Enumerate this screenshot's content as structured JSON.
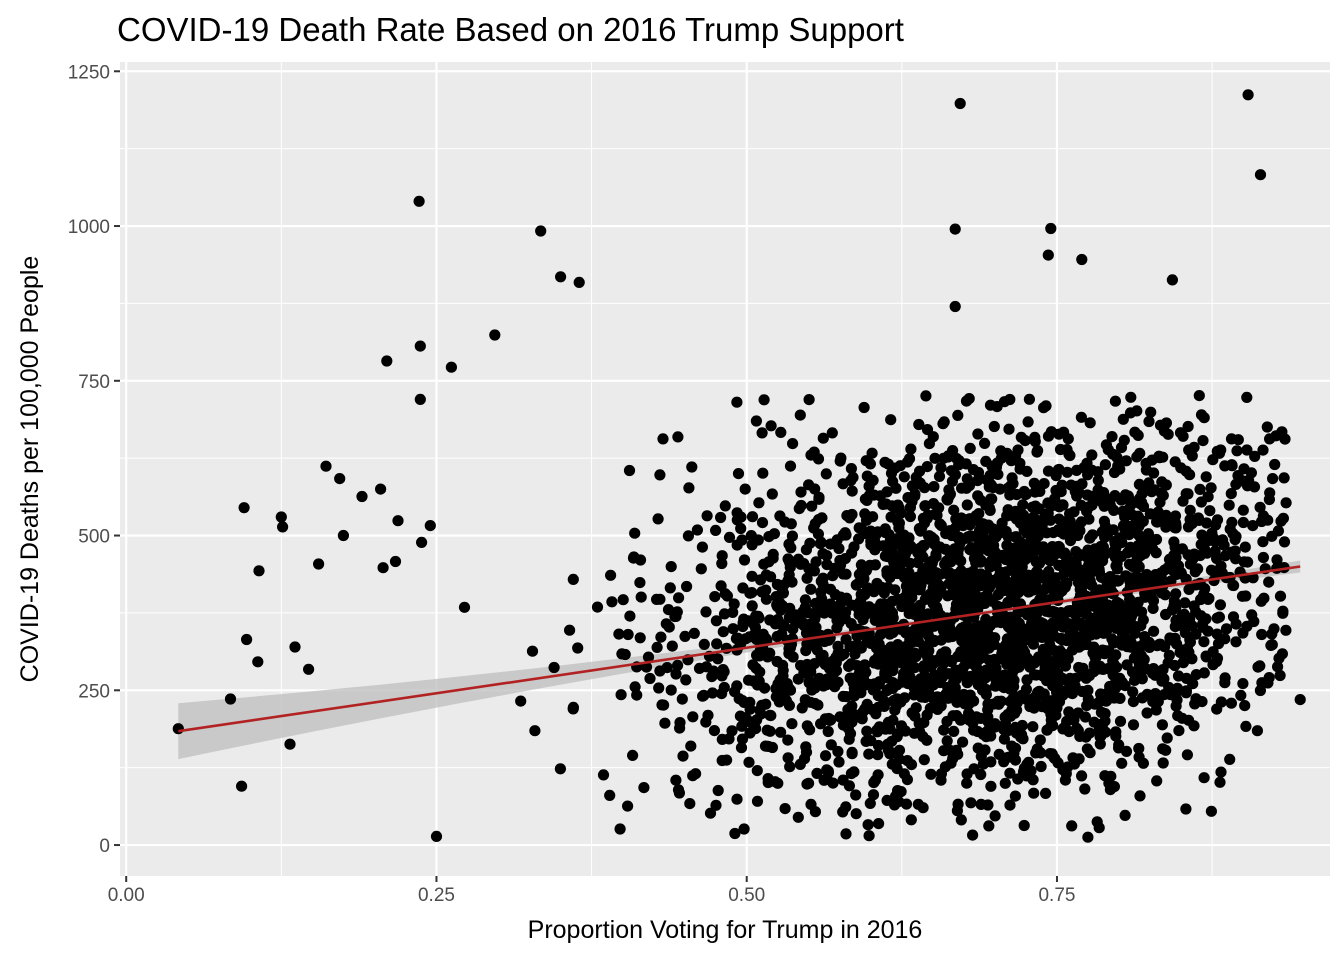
{
  "chart_data": {
    "type": "scatter",
    "title": "COVID-19 Death Rate Based on 2016 Trump Support",
    "xlabel": "Proportion Voting for Trump in 2016",
    "ylabel": "COVID-19 Deaths per 100,000 People",
    "xlim": [
      -0.005,
      0.97
    ],
    "ylim": [
      -50,
      1265
    ],
    "x_ticks": [
      0.0,
      0.25,
      0.5,
      0.75
    ],
    "x_tick_labels": [
      "0.00",
      "0.25",
      "0.50",
      "0.75"
    ],
    "y_ticks": [
      0,
      250,
      500,
      750,
      1000,
      1250
    ],
    "y_tick_labels": [
      "0",
      "250",
      "500",
      "750",
      "1000",
      "1250"
    ],
    "grid": true,
    "background": "#ebebeb",
    "point_color": "#000000",
    "fit_line": {
      "method": "linear",
      "x": [
        0.042,
        0.946
      ],
      "y": [
        184,
        450
      ],
      "color": "#b22222",
      "band_color": "#bdbdbd"
    },
    "highlighted_points": [
      {
        "x": 0.042,
        "y": 188
      },
      {
        "x": 0.084,
        "y": 236
      },
      {
        "x": 0.093,
        "y": 95
      },
      {
        "x": 0.095,
        "y": 545
      },
      {
        "x": 0.097,
        "y": 332
      },
      {
        "x": 0.106,
        "y": 296
      },
      {
        "x": 0.107,
        "y": 443
      },
      {
        "x": 0.125,
        "y": 530
      },
      {
        "x": 0.126,
        "y": 514
      },
      {
        "x": 0.132,
        "y": 163
      },
      {
        "x": 0.136,
        "y": 320
      },
      {
        "x": 0.147,
        "y": 284
      },
      {
        "x": 0.155,
        "y": 454
      },
      {
        "x": 0.161,
        "y": 612
      },
      {
        "x": 0.172,
        "y": 592
      },
      {
        "x": 0.175,
        "y": 500
      },
      {
        "x": 0.19,
        "y": 563
      },
      {
        "x": 0.205,
        "y": 575
      },
      {
        "x": 0.207,
        "y": 448
      },
      {
        "x": 0.21,
        "y": 782
      },
      {
        "x": 0.217,
        "y": 458
      },
      {
        "x": 0.219,
        "y": 524
      },
      {
        "x": 0.236,
        "y": 1040
      },
      {
        "x": 0.237,
        "y": 806
      },
      {
        "x": 0.237,
        "y": 720
      },
      {
        "x": 0.238,
        "y": 489
      },
      {
        "x": 0.245,
        "y": 516
      },
      {
        "x": 0.25,
        "y": 14
      },
      {
        "x": 0.262,
        "y": 772
      },
      {
        "x": 0.297,
        "y": 824
      },
      {
        "x": 0.334,
        "y": 992
      },
      {
        "x": 0.35,
        "y": 918
      },
      {
        "x": 0.365,
        "y": 909
      },
      {
        "x": 0.672,
        "y": 1198
      },
      {
        "x": 0.668,
        "y": 995
      },
      {
        "x": 0.668,
        "y": 870
      },
      {
        "x": 0.745,
        "y": 996
      },
      {
        "x": 0.743,
        "y": 953
      },
      {
        "x": 0.77,
        "y": 946
      },
      {
        "x": 0.904,
        "y": 1212
      },
      {
        "x": 0.914,
        "y": 1083
      },
      {
        "x": 0.946,
        "y": 235
      },
      {
        "x": 0.843,
        "y": 913
      },
      {
        "x": 0.682,
        "y": 16
      },
      {
        "x": 0.58,
        "y": 18
      },
      {
        "x": 0.398,
        "y": 26
      },
      {
        "x": 0.784,
        "y": 28
      }
    ]
  }
}
